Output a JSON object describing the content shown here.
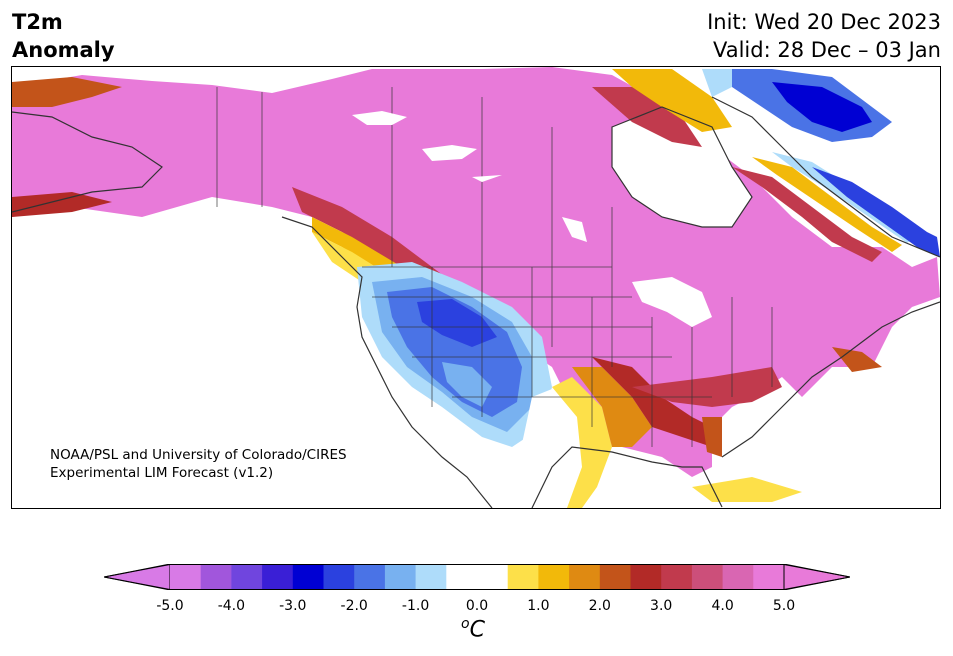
{
  "title": {
    "line1": "T2m",
    "line2": "Anomaly"
  },
  "header_right": {
    "init": "Init: Wed 20 Dec 2023",
    "valid": "Valid: 28 Dec – 03 Jan"
  },
  "credit": {
    "line1": "NOAA/PSL and University of Colorado/CIRES",
    "line2": "Experimental LIM Forecast (v1.2)"
  },
  "colorbar": {
    "colors": [
      "#d87ae6",
      "#a156dc",
      "#7045de",
      "#3a1fd6",
      "#0000d3",
      "#2b41df",
      "#4a73e6",
      "#78b1f0",
      "#aedcfa",
      "#ffffff",
      "#ffffff",
      "#fde049",
      "#f2b90a",
      "#df8a12",
      "#c3541a",
      "#b22a27",
      "#c13a4d",
      "#cc4f7a",
      "#d966b2",
      "#e87ad9"
    ],
    "under": "#d87ae6",
    "over": "#e87ad9",
    "ticks": [
      "-5.0",
      "-4.0",
      "-3.0",
      "-2.0",
      "-1.0",
      "0.0",
      "1.0",
      "2.0",
      "3.0",
      "4.0",
      "5.0"
    ],
    "unit_base": "C",
    "unit_sup": "o"
  }
}
